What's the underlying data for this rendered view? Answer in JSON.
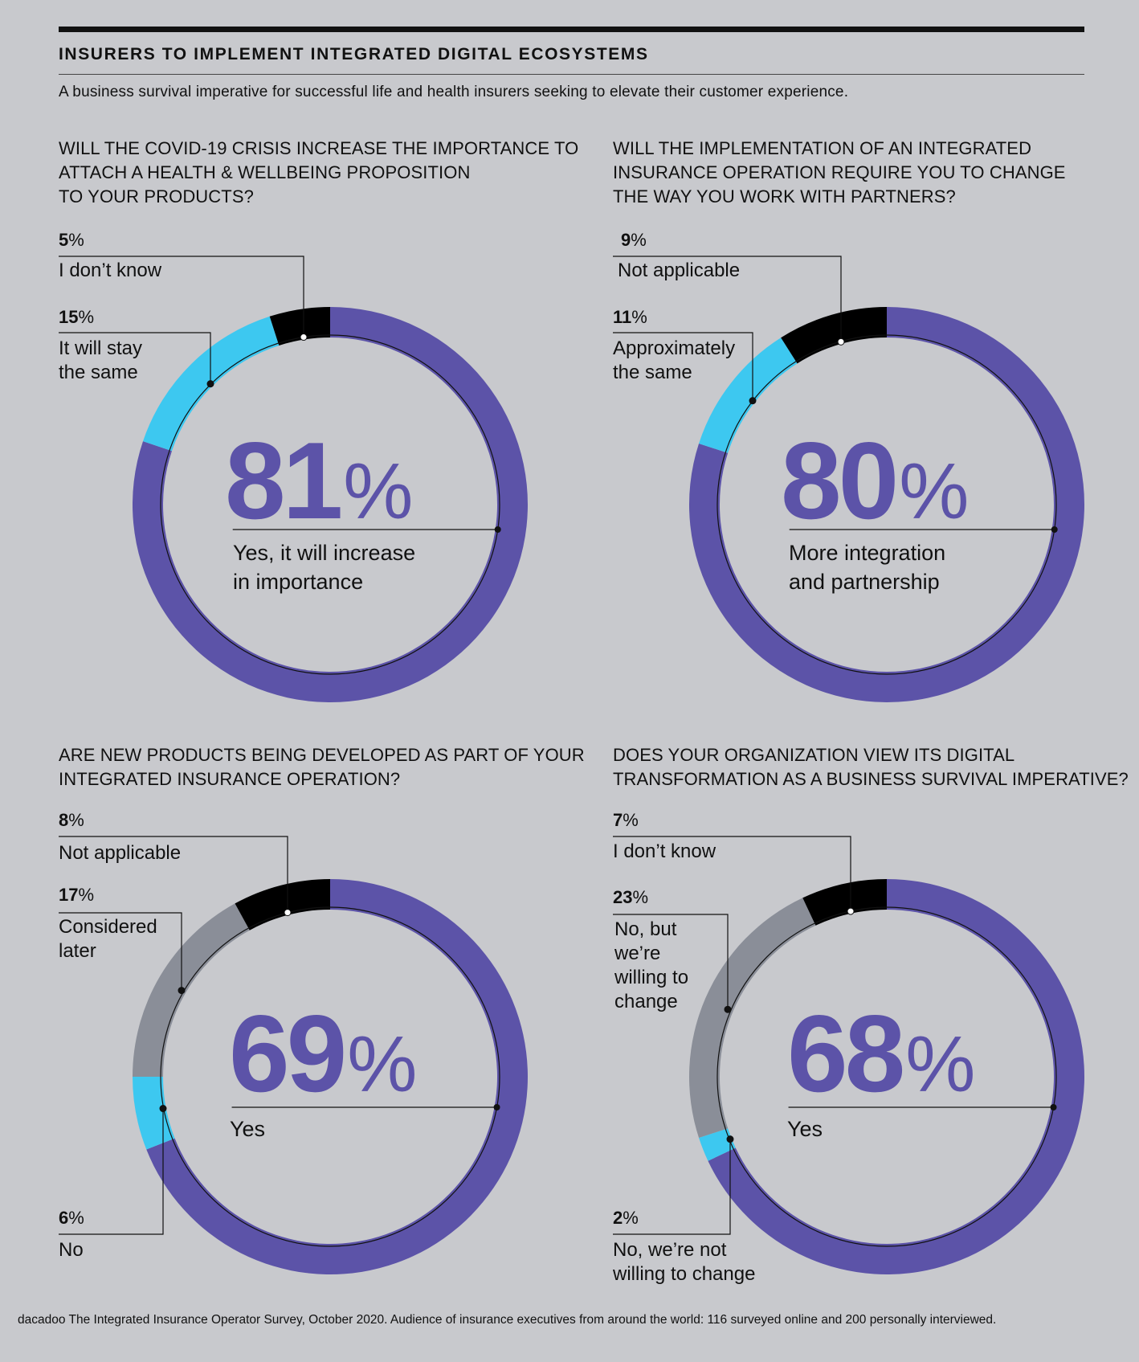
{
  "header": {
    "title": "INSURERS TO IMPLEMENT INTEGRATED DIGITAL ECOSYSTEMS",
    "subtitle": "A business survival imperative for successful life and health insurers seeking to elevate their customer experience."
  },
  "colors": {
    "purple": "#5c53a8",
    "black": "#000000",
    "cyan": "#3dc8f0",
    "gray": "#8a8e98",
    "background": "#c8c9cd"
  },
  "footer": {
    "source": "dacadoo The Integrated Insurance Operator Survey, October 2020. Audience of insurance executives from around the world: 116 surveyed online and 200 personally interviewed."
  },
  "chart_data": [
    {
      "type": "pie",
      "title": "WILL THE COVID-19 CRISIS INCREASE THE IMPORTANCE TO\nATTACH A HEALTH & WELLBEING PROPOSITION\nTO YOUR PRODUCTS?",
      "headline": {
        "value": "81",
        "unit": "%",
        "label": "Yes, it will increase\nin importance"
      },
      "slices": [
        {
          "label": "Yes, it will increase in importance",
          "value": 81,
          "color": "#5c53a8"
        },
        {
          "label": "It will stay\nthe same",
          "value": 15,
          "color": "#3dc8f0"
        },
        {
          "label": "I don’t know",
          "value": 5,
          "color": "#000000"
        }
      ]
    },
    {
      "type": "pie",
      "title": "WILL THE IMPLEMENTATION OF AN INTEGRATED\nINSURANCE OPERATION REQUIRE YOU TO CHANGE\nTHE WAY YOU WORK WITH PARTNERS?",
      "headline": {
        "value": "80",
        "unit": "%",
        "label": "More integration\nand partnership"
      },
      "slices": [
        {
          "label": "More integration and partnership",
          "value": 80,
          "color": "#5c53a8"
        },
        {
          "label": "Approximately\nthe same",
          "value": 11,
          "color": "#3dc8f0"
        },
        {
          "label": "Not applicable",
          "value": 9,
          "color": "#000000"
        }
      ]
    },
    {
      "type": "pie",
      "title": "ARE NEW PRODUCTS BEING DEVELOPED AS PART OF YOUR\nINTEGRATED INSURANCE OPERATION?",
      "headline": {
        "value": "69",
        "unit": "%",
        "label": "Yes"
      },
      "slices": [
        {
          "label": "Yes",
          "value": 69,
          "color": "#5c53a8"
        },
        {
          "label": "No",
          "value": 6,
          "color": "#3dc8f0"
        },
        {
          "label": "Considered\nlater",
          "value": 17,
          "color": "#8a8e98"
        },
        {
          "label": "Not applicable",
          "value": 8,
          "color": "#000000"
        }
      ]
    },
    {
      "type": "pie",
      "title": "DOES YOUR ORGANIZATION VIEW ITS DIGITAL\nTRANSFORMATION AS A BUSINESS SURVIVAL IMPERATIVE?",
      "headline": {
        "value": "68",
        "unit": "%",
        "label": "Yes"
      },
      "slices": [
        {
          "label": "Yes",
          "value": 68,
          "color": "#5c53a8"
        },
        {
          "label": "No, we’re not\nwilling to change",
          "value": 2,
          "color": "#3dc8f0"
        },
        {
          "label": "No, but\nwe’re\nwilling to\nchange",
          "value": 23,
          "color": "#8a8e98"
        },
        {
          "label": "I don’t know",
          "value": 7,
          "color": "#000000"
        }
      ]
    }
  ]
}
